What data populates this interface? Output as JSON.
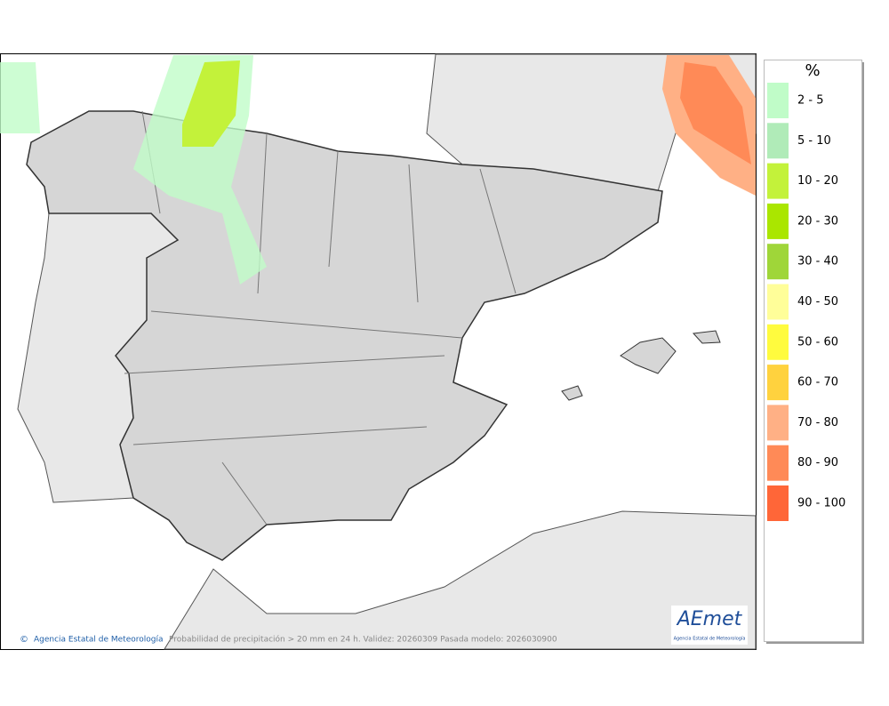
{
  "map": {
    "footer": {
      "agency": "Agencia Estatal de Meteorología",
      "caption": "Probabilidad de precipitación > 20 mm en 24 h. Validez: 20260309 Pasada modelo: 2026030900"
    },
    "logo": {
      "name": "AEmet",
      "subtitle": "Agencia Estatal de Meteorología"
    },
    "legend": {
      "title": "%",
      "items": [
        {
          "label": "2 - 5",
          "color": "#c0fcc8"
        },
        {
          "label": "5 - 10",
          "color": "#b0ebb8"
        },
        {
          "label": "10 - 20",
          "color": "#c3f23a"
        },
        {
          "label": "20 - 30",
          "color": "#aae600"
        },
        {
          "label": "30 - 40",
          "color": "#9fd639"
        },
        {
          "label": "40 - 50",
          "color": "#fffe99"
        },
        {
          "label": "50 - 60",
          "color": "#fffb3e"
        },
        {
          "label": "60 - 70",
          "color": "#ffd23e"
        },
        {
          "label": "70 - 80",
          "color": "#ffb085"
        },
        {
          "label": "80 - 90",
          "color": "#ff8a57"
        },
        {
          "label": "90 - 100",
          "color": "#ff6638"
        }
      ]
    }
  }
}
